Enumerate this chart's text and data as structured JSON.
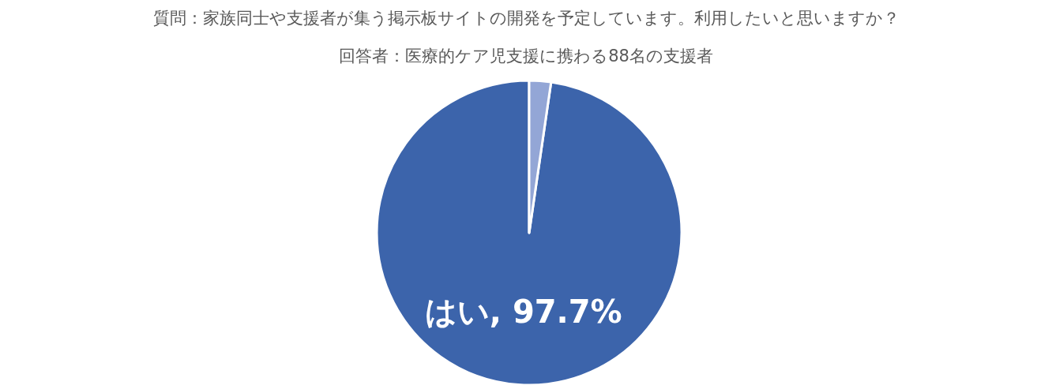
{
  "chart_data": {
    "type": "pie",
    "title": "質問：家族同士や支援者が集う掲示板サイトの開発を予定しています。利用したいと思いますか？",
    "subtitle": "回答者：医療的ケア児支援に携わる88名の支援者",
    "categories": [
      "はい",
      null
    ],
    "values": [
      97.7,
      2.3
    ],
    "colors": [
      "#3c64ab",
      "#93a6d6"
    ],
    "value_labels": [
      "97.7%",
      null
    ],
    "legend": false
  }
}
